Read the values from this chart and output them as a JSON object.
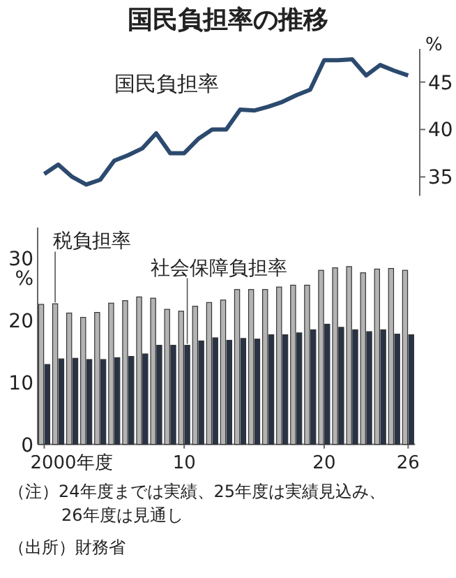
{
  "chart_data": [
    {
      "type": "line",
      "title": "国民負担率の推移",
      "ylabel": "%",
      "categories": [
        null,
        null,
        null,
        null,
        null,
        null,
        null,
        null,
        null,
        null,
        null,
        null,
        null,
        null,
        null,
        null,
        null,
        null,
        null,
        null,
        null,
        null,
        null,
        null,
        null,
        null,
        null
      ],
      "ylim": [
        33,
        48.5
      ],
      "yticks": [
        35,
        40,
        45
      ],
      "tick_labels": "y",
      "grid": false,
      "series": [
        {
          "name": "国民負担率",
          "color": "#2c4a6e",
          "values": [
            35.3,
            36.3,
            35.0,
            34.2,
            34.7,
            36.7,
            37.3,
            38.0,
            39.6,
            37.5,
            37.5,
            39.0,
            40.0,
            40.0,
            42.1,
            42.0,
            42.4,
            42.9,
            43.6,
            44.2,
            47.3,
            47.3,
            47.4,
            45.7,
            46.8,
            46.2,
            45.7
          ]
        }
      ]
    },
    {
      "type": "bar",
      "ylabel": "%",
      "x": [
        2000,
        2001,
        2002,
        2003,
        2004,
        2005,
        2006,
        2007,
        2008,
        2009,
        2010,
        2011,
        2012,
        2013,
        2014,
        2015,
        2016,
        2017,
        2018,
        2019,
        2020,
        2021,
        2022,
        2023,
        2024,
        2025,
        2026
      ],
      "xlim": [
        1999.5,
        2026.5
      ],
      "xticks": [
        {
          "value": 2000,
          "label": "2000年度"
        },
        {
          "value": 2010,
          "label": "10"
        },
        {
          "value": 2020,
          "label": "20"
        },
        {
          "value": 2026,
          "label": "26"
        }
      ],
      "ylim": [
        0,
        35
      ],
      "yticks": [
        0,
        10,
        20,
        30
      ],
      "grid": false,
      "series": [
        {
          "name": "税負担率",
          "color": "#b4b4b4",
          "values": [
            22.6,
            22.7,
            21.2,
            20.5,
            21.3,
            22.8,
            23.2,
            23.8,
            23.6,
            21.8,
            21.5,
            22.3,
            22.9,
            23.3,
            25.0,
            25.0,
            25.0,
            25.4,
            25.7,
            25.7,
            28.1,
            28.5,
            28.7,
            27.7,
            28.3,
            28.4,
            28.1
          ]
        },
        {
          "name": "社会保障負担率",
          "color": "#283348",
          "values": [
            12.9,
            13.8,
            13.9,
            13.7,
            13.7,
            14.0,
            14.2,
            14.6,
            16.0,
            16.0,
            16.0,
            16.7,
            17.2,
            16.8,
            17.1,
            17.0,
            17.7,
            17.7,
            18.0,
            18.5,
            19.4,
            18.9,
            18.5,
            18.2,
            18.5,
            17.8,
            17.7
          ]
        }
      ],
      "annotations": [
        "（注）24年度までは実績、25年度は実績見込み、26年度は見通し",
        "（出所）財務省"
      ]
    }
  ]
}
